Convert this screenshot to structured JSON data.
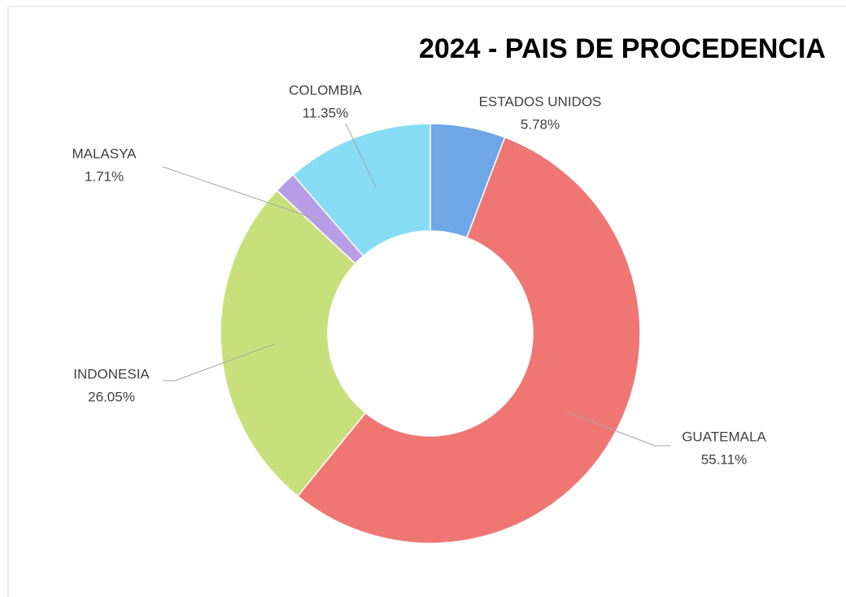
{
  "chart_data": {
    "type": "donut",
    "title": "2024 - PAIS DE PROCEDENCIA",
    "categories": [
      "ESTADOS UNIDOS",
      "GUATEMALA",
      "INDONESIA",
      "MALASYA",
      "COLOMBIA"
    ],
    "values": [
      5.78,
      55.11,
      26.05,
      1.71,
      11.35
    ],
    "value_labels": [
      "5.78%",
      "55.11%",
      "26.05%",
      "1.71%",
      "11.35%"
    ],
    "colors": [
      "#6ea6e6",
      "#f07674",
      "#c8e07c",
      "#b89de6",
      "#86dcf4"
    ]
  }
}
